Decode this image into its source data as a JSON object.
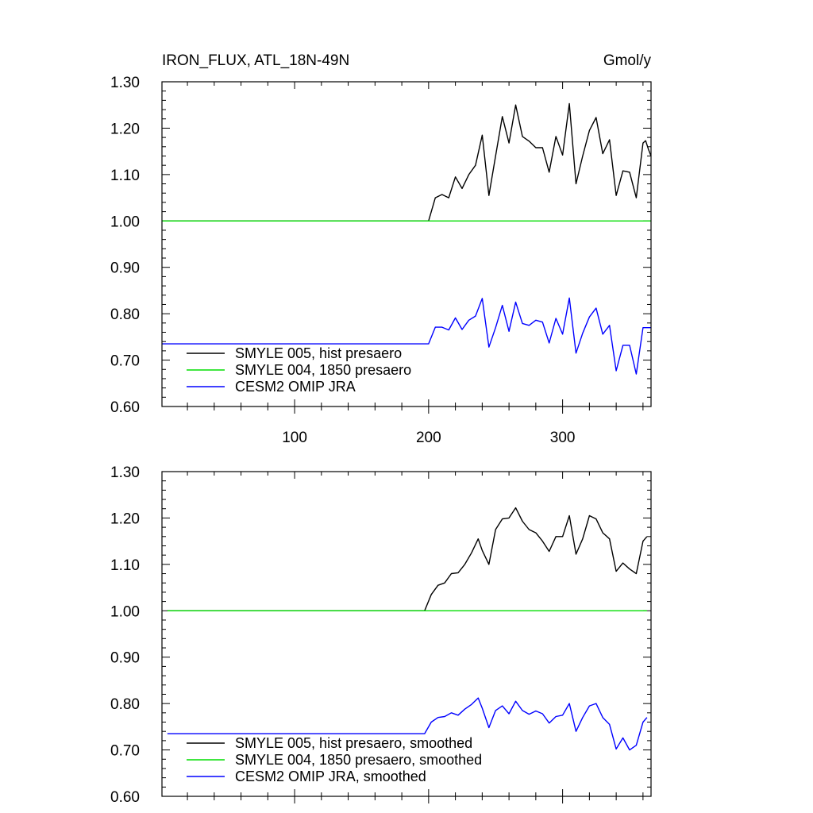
{
  "chart_data": [
    {
      "type": "line",
      "title": "IRON_FLUX, ATL_18N-49N",
      "units": "Gmol/y",
      "xlim": [
        1,
        366
      ],
      "ylim": [
        0.6,
        1.3
      ],
      "xticks": [
        100,
        200,
        300
      ],
      "xtick_labels": [
        "100",
        "200",
        "300"
      ],
      "yticks": [
        0.6,
        0.7,
        0.8,
        0.9,
        1.0,
        1.1,
        1.2,
        1.3
      ],
      "ytick_labels": [
        "0.60",
        "0.70",
        "0.80",
        "0.90",
        "1.00",
        "1.10",
        "1.20",
        "1.30"
      ],
      "grid": false,
      "legend_position": "bottom-left",
      "series": [
        {
          "name": "SMYLE 005, hist presaero",
          "color": "#000000",
          "x": [
            1,
            200,
            205,
            210,
            215,
            220,
            225,
            230,
            235,
            240,
            245,
            250,
            255,
            260,
            265,
            270,
            275,
            280,
            285,
            290,
            295,
            300,
            305,
            310,
            315,
            320,
            325,
            330,
            335,
            340,
            345,
            350,
            355,
            360,
            362,
            364,
            366
          ],
          "y": [
            1.0,
            1.0,
            1.05,
            1.057,
            1.05,
            1.095,
            1.07,
            1.1,
            1.12,
            1.185,
            1.055,
            1.14,
            1.225,
            1.168,
            1.25,
            1.182,
            1.172,
            1.158,
            1.158,
            1.105,
            1.182,
            1.142,
            1.253,
            1.08,
            1.14,
            1.195,
            1.223,
            1.145,
            1.175,
            1.055,
            1.108,
            1.105,
            1.05,
            1.168,
            1.173,
            1.155,
            1.14
          ]
        },
        {
          "name": "SMYLE 004, 1850 presaero",
          "color": "#00dd00",
          "x": [
            1,
            366
          ],
          "y": [
            1.0,
            1.0
          ]
        },
        {
          "name": "CESM2 OMIP JRA",
          "color": "#0000ff",
          "x": [
            1,
            200,
            205,
            210,
            215,
            220,
            225,
            230,
            235,
            240,
            245,
            250,
            255,
            260,
            265,
            270,
            275,
            280,
            285,
            290,
            295,
            300,
            305,
            310,
            315,
            320,
            325,
            330,
            335,
            340,
            345,
            350,
            355,
            360,
            366
          ],
          "y": [
            0.735,
            0.735,
            0.771,
            0.771,
            0.765,
            0.791,
            0.766,
            0.786,
            0.795,
            0.833,
            0.728,
            0.77,
            0.818,
            0.762,
            0.825,
            0.779,
            0.775,
            0.786,
            0.782,
            0.737,
            0.79,
            0.756,
            0.834,
            0.715,
            0.758,
            0.793,
            0.812,
            0.756,
            0.775,
            0.677,
            0.732,
            0.732,
            0.67,
            0.77,
            0.77
          ]
        }
      ]
    },
    {
      "type": "line",
      "xlim": [
        1,
        366
      ],
      "ylim": [
        0.6,
        1.3
      ],
      "xticks": [
        100,
        200,
        300
      ],
      "yticks": [
        0.6,
        0.7,
        0.8,
        0.9,
        1.0,
        1.1,
        1.2,
        1.3
      ],
      "ytick_labels": [
        "0.60",
        "0.70",
        "0.80",
        "0.90",
        "1.00",
        "1.10",
        "1.20",
        "1.30"
      ],
      "grid": false,
      "legend_position": "bottom-left",
      "series": [
        {
          "name": "SMYLE 005, hist presaero, smoothed",
          "color": "#000000",
          "x": [
            5,
            197,
            202,
            207,
            212,
            217,
            222,
            227,
            232,
            237,
            240,
            245,
            250,
            255,
            260,
            265,
            270,
            275,
            280,
            285,
            290,
            295,
            300,
            305,
            310,
            315,
            320,
            325,
            330,
            335,
            340,
            345,
            350,
            355,
            360,
            363
          ],
          "y": [
            1.0,
            1.0,
            1.035,
            1.055,
            1.06,
            1.08,
            1.082,
            1.1,
            1.125,
            1.155,
            1.13,
            1.1,
            1.175,
            1.198,
            1.2,
            1.222,
            1.193,
            1.175,
            1.168,
            1.15,
            1.128,
            1.16,
            1.16,
            1.205,
            1.122,
            1.155,
            1.205,
            1.198,
            1.168,
            1.155,
            1.085,
            1.103,
            1.09,
            1.08,
            1.15,
            1.16
          ]
        },
        {
          "name": "SMYLE 004, 1850 presaero, smoothed",
          "color": "#00dd00",
          "x": [
            5,
            363
          ],
          "y": [
            1.0,
            1.0
          ]
        },
        {
          "name": "CESM2 OMIP JRA, smoothed",
          "color": "#0000ff",
          "x": [
            5,
            197,
            202,
            207,
            212,
            217,
            222,
            227,
            232,
            237,
            240,
            245,
            250,
            255,
            260,
            265,
            270,
            275,
            280,
            285,
            290,
            295,
            300,
            305,
            310,
            315,
            320,
            325,
            330,
            335,
            340,
            345,
            350,
            355,
            360,
            363
          ],
          "y": [
            0.735,
            0.735,
            0.76,
            0.77,
            0.772,
            0.78,
            0.775,
            0.788,
            0.798,
            0.812,
            0.79,
            0.748,
            0.785,
            0.795,
            0.778,
            0.805,
            0.785,
            0.777,
            0.784,
            0.778,
            0.758,
            0.772,
            0.775,
            0.8,
            0.74,
            0.77,
            0.795,
            0.8,
            0.77,
            0.755,
            0.702,
            0.726,
            0.7,
            0.71,
            0.76,
            0.77
          ]
        }
      ]
    }
  ]
}
